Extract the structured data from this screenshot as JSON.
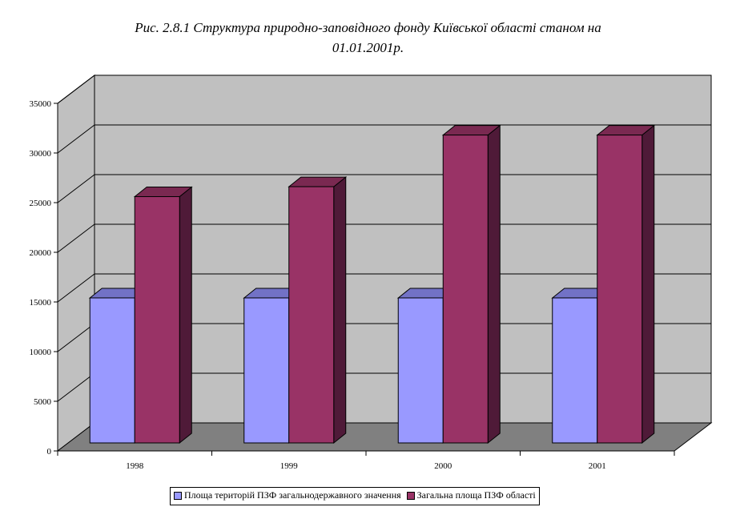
{
  "chart_data": {
    "type": "bar",
    "title": "Рис. 2.8.1 Структура природно-заповідного фонду Київської області станом на 01.01.2001р.",
    "title_lines": [
      "Рис. 2.8.1 Структура природно-заповідного фонду Київської області станом на",
      "01.01.2001р."
    ],
    "categories": [
      "1998",
      "1999",
      "2000",
      "2001"
    ],
    "series": [
      {
        "name": "Площа територій ПЗФ загальнодержавного значення",
        "values": [
          14600,
          14600,
          14600,
          14600
        ],
        "color": "#9999FF",
        "top_color": "#7272C6",
        "side_color": "#5454A0"
      },
      {
        "name": "Загальна площа ПЗФ області",
        "values": [
          24800,
          25800,
          31000,
          31000
        ],
        "color": "#993366",
        "top_color": "#7A2951",
        "side_color": "#4F1A38"
      }
    ],
    "ylim": [
      0,
      35000
    ],
    "yticks": [
      "0",
      "5000",
      "10000",
      "15000",
      "20000",
      "25000",
      "30000",
      "35000"
    ],
    "xlabel": "",
    "ylabel": "",
    "grid": true,
    "legend_position": "bottom",
    "wall_color": "#C0C0C0",
    "floor_color": "#808080"
  }
}
